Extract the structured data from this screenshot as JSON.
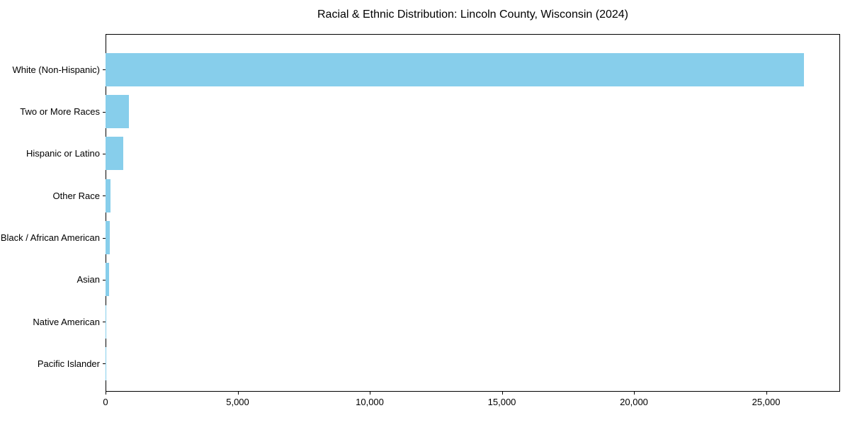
{
  "chart_data": {
    "type": "bar",
    "orientation": "horizontal",
    "title": "Racial & Ethnic Distribution: Lincoln County, Wisconsin (2024)",
    "xlabel": "",
    "ylabel": "",
    "categories": [
      "White (Non-Hispanic)",
      "Two or More Races",
      "Hispanic or Latino",
      "Other Race",
      "Black / African American",
      "Asian",
      "Native American",
      "Pacific Islander"
    ],
    "values": [
      26430,
      875,
      670,
      185,
      165,
      140,
      25,
      5
    ],
    "xlim": [
      0,
      27800
    ],
    "x_ticks": {
      "values": [
        0,
        5000,
        10000,
        15000,
        20000,
        25000
      ],
      "labels": [
        "0",
        "5,000",
        "10,000",
        "15,000",
        "20,000",
        "25,000"
      ]
    },
    "grid": "off",
    "legend": "none",
    "bar_color": "#87CEEB",
    "axis_color": "#000000",
    "text_color": "#000000",
    "background_color": "#ffffff"
  }
}
